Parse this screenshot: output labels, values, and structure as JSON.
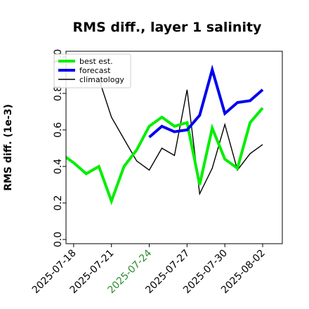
{
  "chart_data": {
    "type": "line",
    "title": "RMS diff., layer 1 salinity",
    "xlabel": "",
    "ylabel": "RMS diff. (1e-3)",
    "ylim": [
      0.0,
      1.0
    ],
    "yticks": [
      "0.0",
      "0.2",
      "0.4",
      "0.6",
      "0.8",
      "1.0"
    ],
    "xlim": [
      "2025-07-16",
      "2025-08-02"
    ],
    "xticks": [
      {
        "label": "2025-07-18",
        "date": "2025-07-18",
        "color": "#000000"
      },
      {
        "label": "2025-07-21",
        "date": "2025-07-21",
        "color": "#000000"
      },
      {
        "label": "2025-07-24",
        "date": "2025-07-24",
        "color": "#2e8b2e"
      },
      {
        "label": "2025-07-27",
        "date": "2025-07-27",
        "color": "#000000"
      },
      {
        "label": "2025-07-30",
        "date": "2025-07-30",
        "color": "#000000"
      },
      {
        "label": "2025-08-02",
        "date": "2025-08-02",
        "color": "#000000"
      }
    ],
    "grid": false,
    "legend": "top-left",
    "series": [
      {
        "name": "best est.",
        "color": "#00ee00",
        "style": "thick",
        "x": [
          "2025-07-17",
          "2025-07-18",
          "2025-07-19",
          "2025-07-20",
          "2025-07-21",
          "2025-07-22",
          "2025-07-23",
          "2025-07-24",
          "2025-07-25",
          "2025-07-26",
          "2025-07-27",
          "2025-07-28",
          "2025-07-29",
          "2025-07-30",
          "2025-07-31",
          "2025-08-01",
          "2025-08-02"
        ],
        "y": [
          0.47,
          0.42,
          0.36,
          0.4,
          0.21,
          0.4,
          0.49,
          0.62,
          0.67,
          0.62,
          0.64,
          0.3,
          0.61,
          0.44,
          0.39,
          0.64,
          0.72
        ]
      },
      {
        "name": "forecast",
        "color": "#0000ee",
        "style": "thick",
        "x": [
          "2025-07-24",
          "2025-07-25",
          "2025-07-26",
          "2025-07-27",
          "2025-07-28",
          "2025-07-29",
          "2025-07-30",
          "2025-07-31",
          "2025-08-01",
          "2025-08-02"
        ],
        "y": [
          0.56,
          0.62,
          0.59,
          0.6,
          0.68,
          0.93,
          0.69,
          0.75,
          0.76,
          0.82
        ]
      },
      {
        "name": "climatology",
        "color": "#000000",
        "style": "thin",
        "x": [
          "2025-07-20",
          "2025-07-21",
          "2025-07-22",
          "2025-07-23",
          "2025-07-24",
          "2025-07-25",
          "2025-07-26",
          "2025-07-27",
          "2025-07-28",
          "2025-07-29",
          "2025-07-30",
          "2025-07-31",
          "2025-08-01",
          "2025-08-02"
        ],
        "y": [
          0.88,
          0.67,
          0.55,
          0.43,
          0.38,
          0.5,
          0.46,
          0.82,
          0.25,
          0.39,
          0.63,
          0.38,
          0.47,
          0.52
        ]
      }
    ]
  }
}
